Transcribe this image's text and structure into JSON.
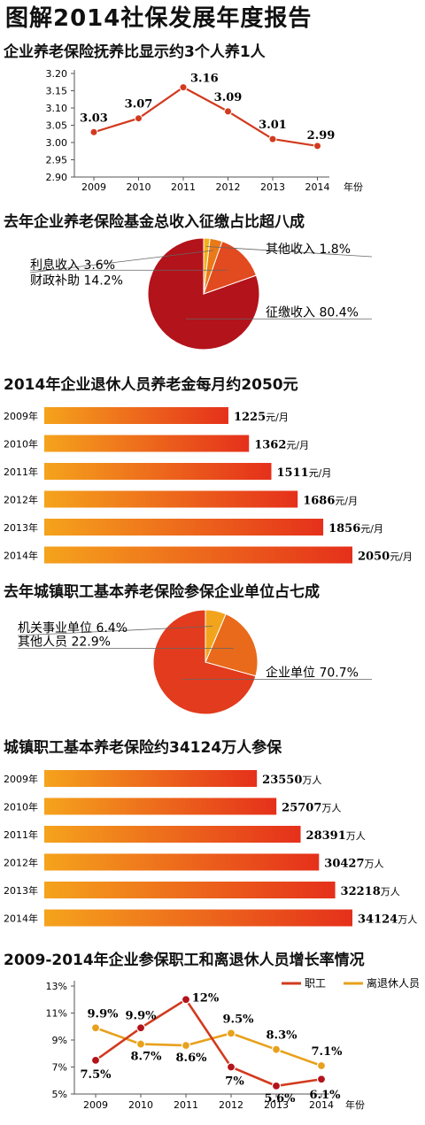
{
  "page": {
    "title": "图解2014社保发展年度报告",
    "sections": [
      "企业养老保险抚养比显示约3个人养1人",
      "去年企业养老保险基金总收入征缴占比超八成",
      "2014年企业退休人员养老金每月约2050元",
      "去年城镇职工基本养老保险参保企业单位占七成",
      "城镇职工基本养老保险约34124万人参保",
      "2009-2014年企业参保职工和离退休人员增长率情况"
    ]
  },
  "colors": {
    "line_red": "#d23a1e",
    "line_orange": "#e8a11c",
    "pie1": [
      "#b3131a",
      "#e24a1f",
      "#ea7a18",
      "#f2b01c"
    ],
    "pie2": [
      "#e23b1d",
      "#e86a1a",
      "#f2a51c"
    ],
    "bar_from": "#f5a31c",
    "bar_to": "#e5301b",
    "marker_dark": "#b3131a"
  },
  "chart_data": [
    {
      "type": "line",
      "title": "企业养老保险抚养比显示约3个人养1人",
      "x": [
        "2009",
        "2010",
        "2011",
        "2012",
        "2013",
        "2014"
      ],
      "xlabel": "年份",
      "series": [
        {
          "values": [
            3.03,
            3.07,
            3.16,
            3.09,
            3.01,
            2.99
          ]
        }
      ],
      "data_labels": [
        "3.03",
        "3.07",
        "3.16",
        "3.09",
        "3.01",
        "2.99"
      ],
      "yticks": [
        "3.20",
        "3.15",
        "3.10",
        "3.05",
        "3.00",
        "2.95",
        "2.90"
      ],
      "ylim": [
        2.9,
        3.2
      ],
      "grid": false
    },
    {
      "type": "pie",
      "title": "去年企业养老保险基金总收入征缴占比超八成",
      "slices": [
        {
          "label": "征缴收入",
          "value": 80.4,
          "text": "80.4%"
        },
        {
          "label": "财政补助",
          "value": 14.2,
          "text": "14.2%"
        },
        {
          "label": "利息收入",
          "value": 3.6,
          "text": "3.6%"
        },
        {
          "label": "其他收入",
          "value": 1.8,
          "text": "1.8%"
        }
      ]
    },
    {
      "type": "bar",
      "title": "2014年企业退休人员养老金每月约2050元",
      "categories": [
        "2009年",
        "2010年",
        "2011年",
        "2012年",
        "2013年",
        "2014年"
      ],
      "values": [
        1225,
        1362,
        1511,
        1686,
        1856,
        2050
      ],
      "unit": "元/月",
      "xlim": [
        0,
        2050
      ]
    },
    {
      "type": "pie",
      "title": "去年城镇职工基本养老保险参保企业单位占七成",
      "slices": [
        {
          "label": "企业单位",
          "value": 70.7,
          "text": "70.7%"
        },
        {
          "label": "其他人员",
          "value": 22.9,
          "text": "22.9%"
        },
        {
          "label": "机关事业单位",
          "value": 6.4,
          "text": "6.4%"
        }
      ]
    },
    {
      "type": "bar",
      "title": "城镇职工基本养老保险约34124万人参保",
      "categories": [
        "2009年",
        "2010年",
        "2011年",
        "2012年",
        "2013年",
        "2014年"
      ],
      "values": [
        23550,
        25707,
        28391,
        30427,
        32218,
        34124
      ],
      "unit": "万人",
      "xlim": [
        0,
        34124
      ]
    },
    {
      "type": "line",
      "title": "2009-2014年企业参保职工和离退休人员增长率情况",
      "x": [
        "2009",
        "2010",
        "2011",
        "2012",
        "2013",
        "2014"
      ],
      "xlabel": "年份",
      "series": [
        {
          "name": "职工",
          "values": [
            7.5,
            9.9,
            12,
            7,
            5.6,
            6.1
          ],
          "labels": [
            "7.5%",
            "9.9%",
            "12%",
            "7%",
            "5.6%",
            "6.1%"
          ]
        },
        {
          "name": "离退休人员",
          "values": [
            9.9,
            8.7,
            8.6,
            9.5,
            8.3,
            7.1
          ],
          "labels": [
            "9.9%",
            "8.7%",
            "8.6%",
            "9.5%",
            "8.3%",
            "7.1%"
          ]
        }
      ],
      "yticks": [
        "13%",
        "11%",
        "9%",
        "7%",
        "5%"
      ],
      "ylim": [
        5,
        13
      ],
      "legend": "top-right",
      "grid": false
    }
  ]
}
